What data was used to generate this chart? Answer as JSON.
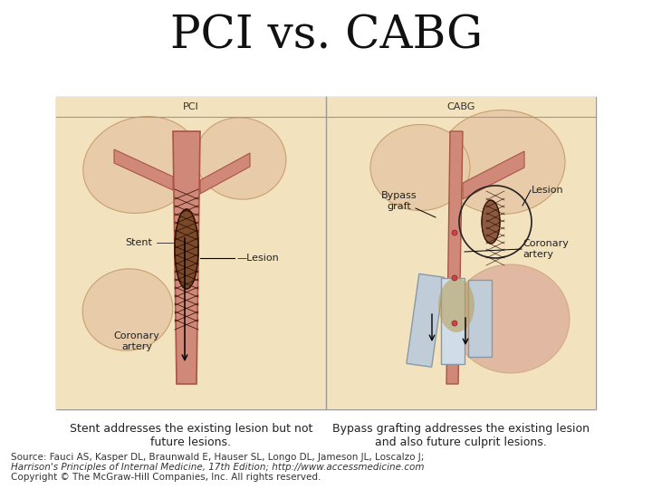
{
  "title": "PCI vs. CABG",
  "title_fontsize": 36,
  "title_font": "serif",
  "bg_color": "#ffffff",
  "caption_left": "Stent addresses the existing lesion but not\nfuture lesions.",
  "caption_right": "Bypass grafting addresses the existing lesion\nand also future culprit lesions.",
  "source_line1": "Source: Fauci AS, Kasper DL, Braunwald E, Hauser SL, Longo DL, Jameson JL, Loscalzo J;",
  "source_line2": "Harrison's Principles of Internal Medicine, 17th Edition; http://www.accessmedicine.com",
  "source_line3": "Copyright © The McGraw-Hill Companies, Inc. All rights reserved.",
  "caption_fontsize": 9,
  "source_fontsize": 7.5,
  "pci_label": "PCI",
  "cabg_label": "CABG",
  "border_color": "#aaaaaa"
}
